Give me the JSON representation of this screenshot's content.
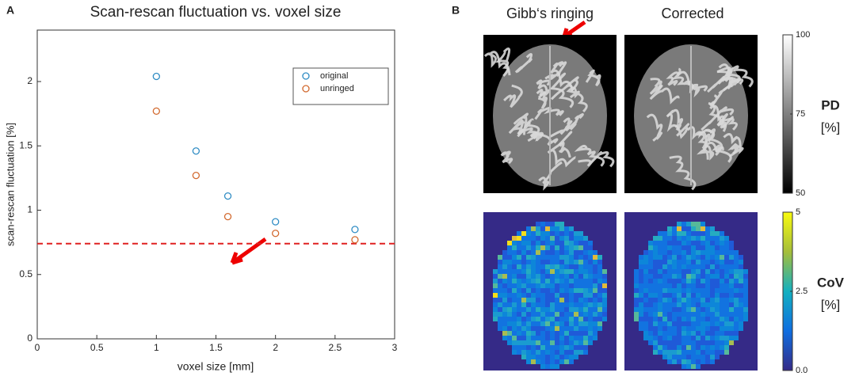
{
  "chart_data": [
    {
      "type": "scatter",
      "panel_label": "A",
      "title": "Scan-rescan fluctuation vs. voxel size",
      "x_label": "voxel size [mm]",
      "y_label": "scan-rescan fluctuation [%]",
      "x": [
        1,
        1.333,
        1.6,
        2,
        2.667
      ],
      "series": [
        {
          "name": "original",
          "color": "#2f8cc4",
          "values": [
            2.04,
            1.46,
            1.11,
            0.91,
            0.85
          ]
        },
        {
          "name": "unringed",
          "color": "#d2692e",
          "values": [
            1.77,
            1.27,
            0.95,
            0.82,
            0.77
          ]
        }
      ],
      "reference_line": {
        "value": 0.74,
        "color": "#e02020",
        "style": "dashed"
      },
      "xlim": [
        0,
        3
      ],
      "xticks": [
        0,
        0.5,
        1,
        1.5,
        2,
        2.5,
        3
      ],
      "ylim": [
        0,
        2.4
      ],
      "yticks": [
        0,
        0.5,
        1,
        1.5,
        2
      ],
      "grid": false,
      "legend": "upper right"
    }
  ],
  "panel_b": {
    "label": "B",
    "columns": [
      "Gibb‘s ringing",
      "Corrected"
    ],
    "colorbars": [
      {
        "label": "PD",
        "unit": "[%]",
        "clim": [
          50,
          100
        ],
        "ticks": [
          50,
          75,
          100
        ],
        "colormap": "gray"
      },
      {
        "label": "CoV",
        "unit": "[%]",
        "clim": [
          0,
          5
        ],
        "ticks": [
          {
            "value": 0,
            "label": "0.0"
          },
          2.5,
          5
        ],
        "colormap": "parula"
      }
    ]
  }
}
